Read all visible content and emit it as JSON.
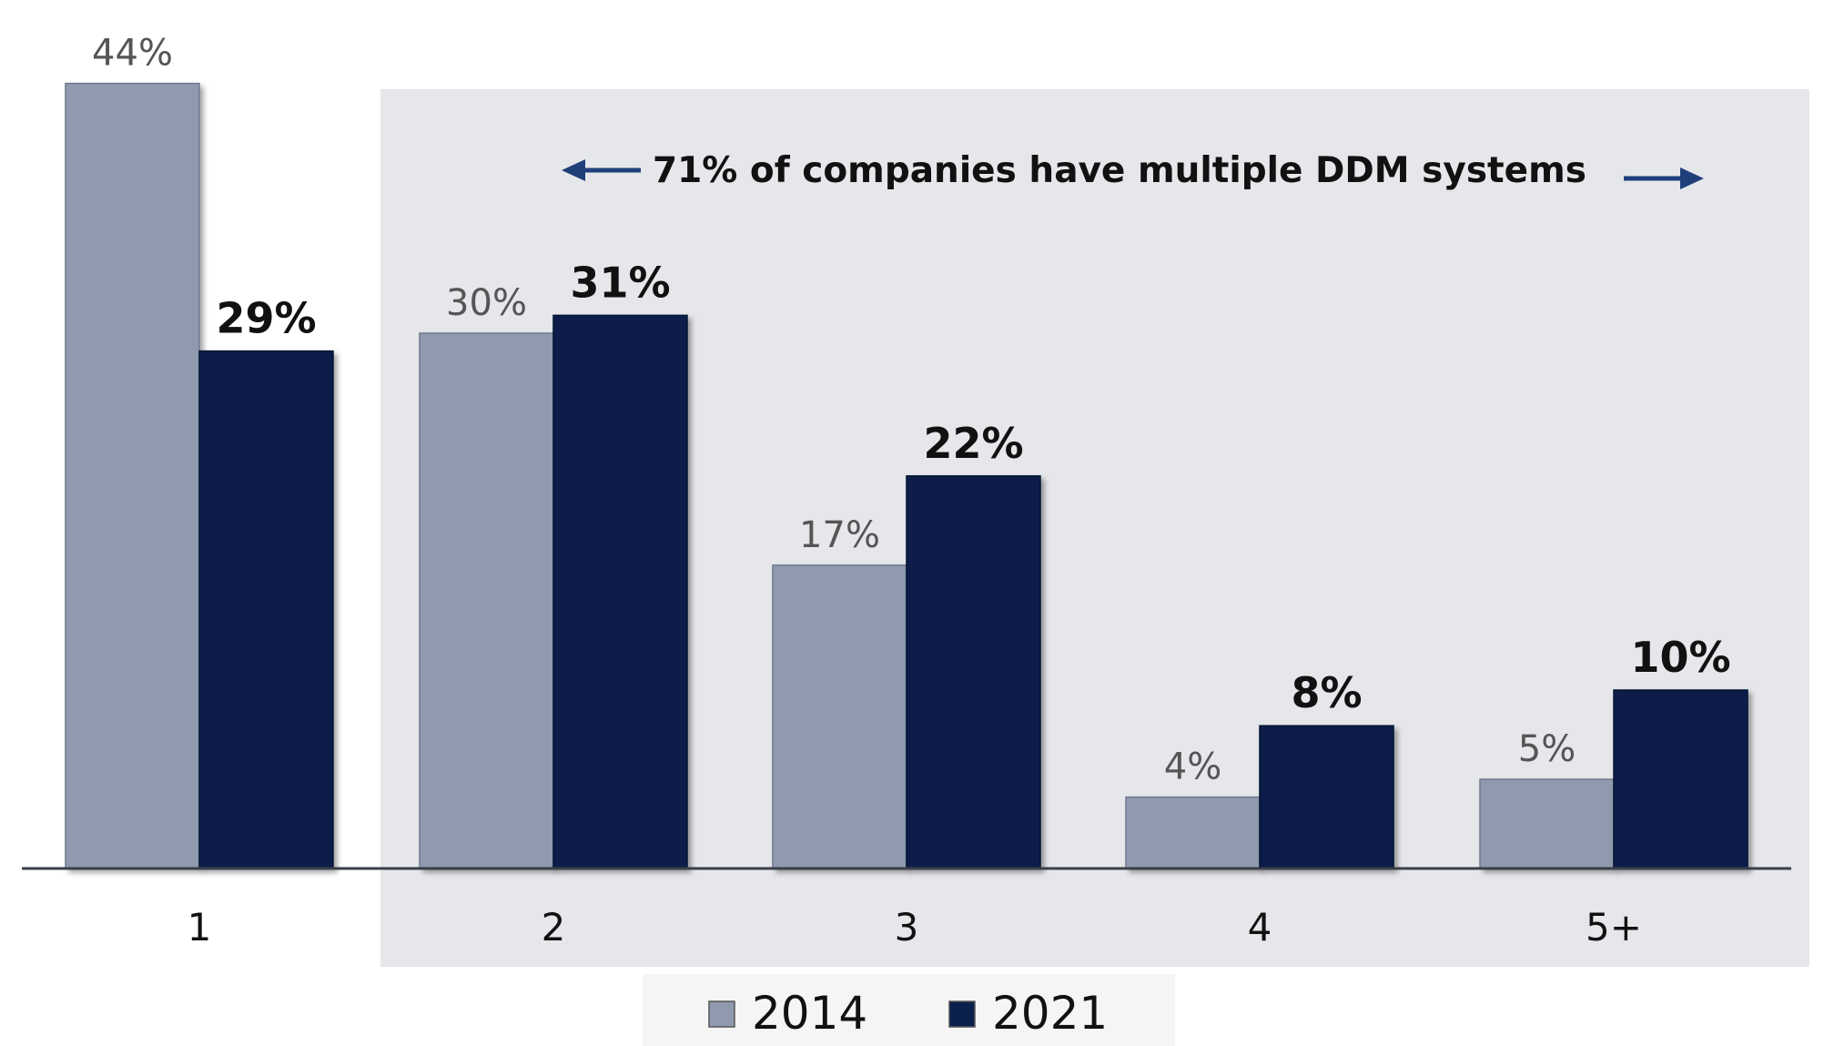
{
  "chart_data": {
    "type": "bar",
    "title": "",
    "xlabel": "",
    "ylabel": "",
    "ylim": [
      0,
      44
    ],
    "grid": false,
    "legend_position": "bottom",
    "categories": [
      "1",
      "2",
      "3",
      "4",
      "5+"
    ],
    "series": [
      {
        "name": "2014",
        "color": "#8f9aae",
        "values": [
          44,
          30,
          17,
          4,
          5
        ],
        "labels": [
          "44%",
          "30%",
          "17%",
          "4%",
          "5%"
        ]
      },
      {
        "name": "2021",
        "color": "#0a1f4a",
        "values": [
          29,
          31,
          22,
          8,
          10
        ],
        "labels": [
          "29%",
          "31%",
          "22%",
          "8%",
          "10%"
        ]
      }
    ],
    "annotation": {
      "text": "71% of companies have multiple DDM systems",
      "arrow_color": "#1e3f7a",
      "highlight_color": "#e6e7eb",
      "highlight_categories": [
        "2",
        "3",
        "4",
        "5+"
      ]
    }
  }
}
